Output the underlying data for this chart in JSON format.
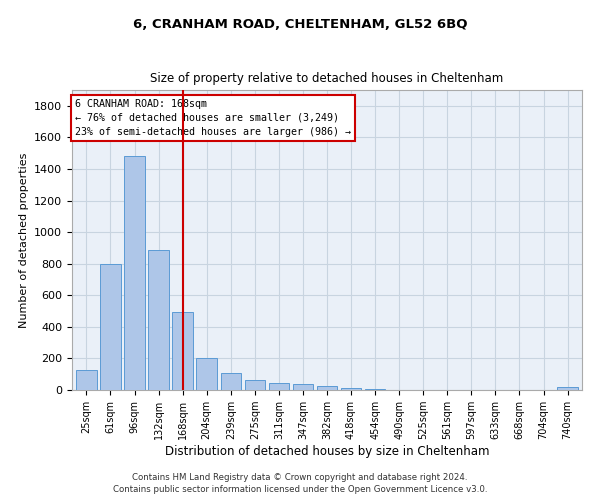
{
  "title": "6, CRANHAM ROAD, CHELTENHAM, GL52 6BQ",
  "subtitle": "Size of property relative to detached houses in Cheltenham",
  "xlabel": "Distribution of detached houses by size in Cheltenham",
  "ylabel": "Number of detached properties",
  "footnote1": "Contains HM Land Registry data © Crown copyright and database right 2024.",
  "footnote2": "Contains public sector information licensed under the Open Government Licence v3.0.",
  "categories": [
    "25sqm",
    "61sqm",
    "96sqm",
    "132sqm",
    "168sqm",
    "204sqm",
    "239sqm",
    "275sqm",
    "311sqm",
    "347sqm",
    "382sqm",
    "418sqm",
    "454sqm",
    "490sqm",
    "525sqm",
    "561sqm",
    "597sqm",
    "633sqm",
    "668sqm",
    "704sqm",
    "740sqm"
  ],
  "values": [
    125,
    795,
    1480,
    885,
    495,
    205,
    105,
    65,
    45,
    35,
    28,
    10,
    5,
    2,
    2,
    1,
    1,
    0,
    0,
    0,
    18
  ],
  "bar_color": "#aec6e8",
  "bar_edge_color": "#5b9bd5",
  "highlight_index": 4,
  "highlight_color": "#cc0000",
  "annotation_line1": "6 CRANHAM ROAD: 168sqm",
  "annotation_line2": "← 76% of detached houses are smaller (3,249)",
  "annotation_line3": "23% of semi-detached houses are larger (986) →",
  "annotation_box_color": "#cc0000",
  "ylim": [
    0,
    1900
  ],
  "yticks": [
    0,
    200,
    400,
    600,
    800,
    1000,
    1200,
    1400,
    1600,
    1800
  ],
  "plot_bg_color": "#eaf0f8",
  "grid_color": "#c8d4e0"
}
